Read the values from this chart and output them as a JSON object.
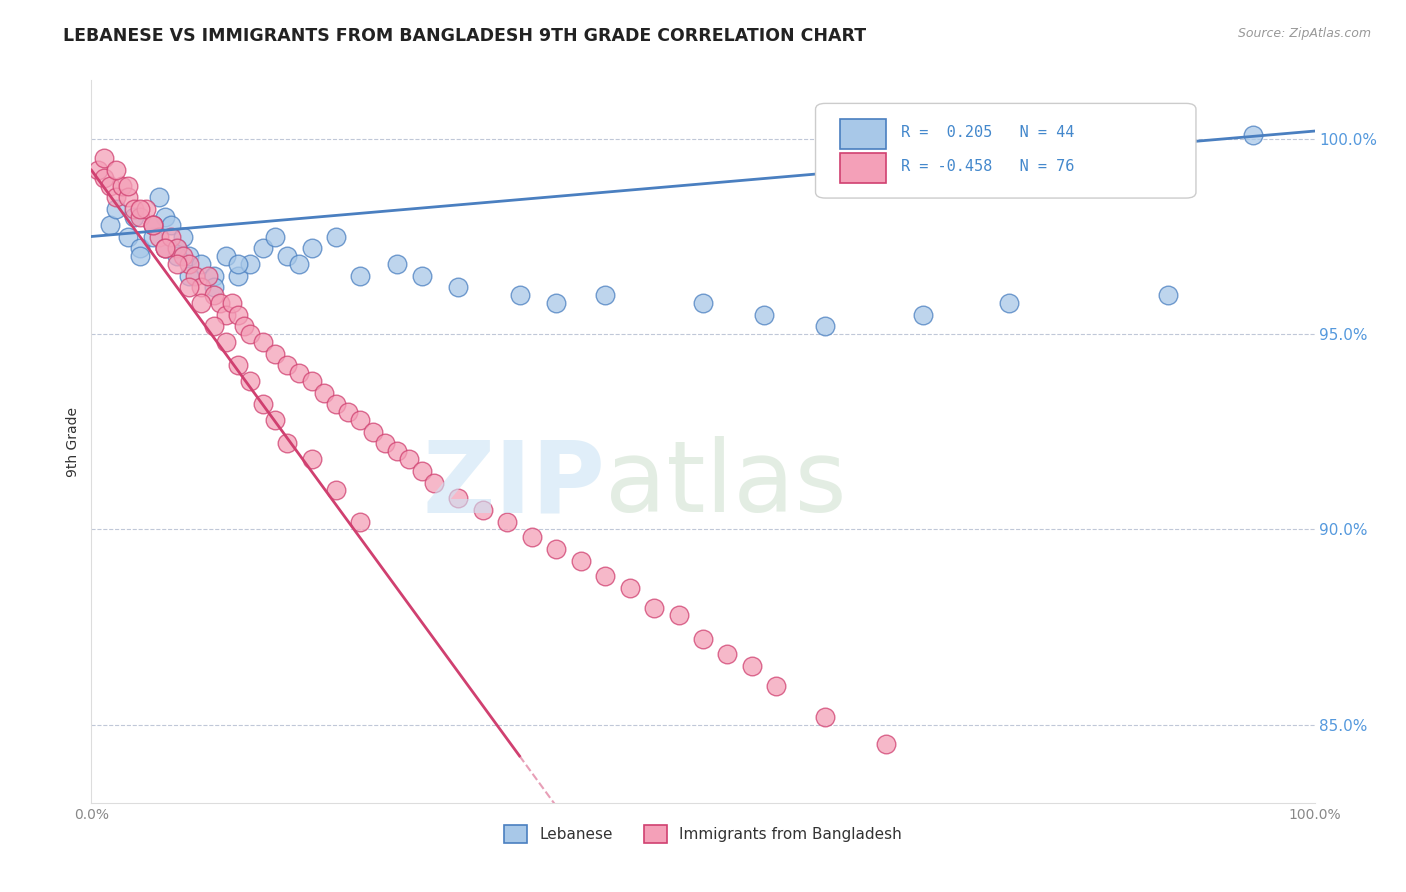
{
  "title": "LEBANESE VS IMMIGRANTS FROM BANGLADESH 9TH GRADE CORRELATION CHART",
  "source": "Source: ZipAtlas.com",
  "ylabel": "9th Grade",
  "legend_label_blue": "Lebanese",
  "legend_label_pink": "Immigrants from Bangladesh",
  "R_blue": 0.205,
  "N_blue": 44,
  "R_pink": -0.458,
  "N_pink": 76,
  "color_blue": "#A8C8E8",
  "color_pink": "#F4A0B8",
  "line_blue": "#4A7FC0",
  "line_pink": "#D04070",
  "xlim": [
    0,
    100
  ],
  "ylim": [
    83.0,
    101.5
  ],
  "yticks": [
    85.0,
    90.0,
    95.0,
    100.0
  ],
  "blue_trend_y0": 97.5,
  "blue_trend_y1": 100.2,
  "pink_trend_y0": 99.2,
  "pink_trend_x_end_solid": 35,
  "pink_trend_y_end_solid": 84.2,
  "pink_trend_x_end_dashed": 55,
  "pink_trend_y_end_dashed": 79.0,
  "blue_x": [
    1.5,
    2.0,
    3.0,
    3.5,
    4.0,
    5.0,
    5.5,
    6.0,
    6.5,
    7.0,
    7.5,
    8.0,
    9.0,
    10.0,
    11.0,
    12.0,
    13.0,
    14.0,
    15.0,
    16.0,
    17.0,
    18.0,
    20.0,
    22.0,
    25.0,
    27.0,
    30.0,
    35.0,
    38.0,
    42.0,
    50.0,
    55.0,
    60.0,
    68.0,
    75.0,
    88.0,
    4.0,
    5.0,
    6.0,
    7.0,
    8.0,
    10.0,
    12.0,
    95.0
  ],
  "blue_y": [
    97.8,
    98.2,
    97.5,
    98.0,
    97.2,
    97.5,
    98.5,
    98.0,
    97.8,
    97.2,
    97.5,
    97.0,
    96.8,
    96.5,
    97.0,
    96.5,
    96.8,
    97.2,
    97.5,
    97.0,
    96.8,
    97.2,
    97.5,
    96.5,
    96.8,
    96.5,
    96.2,
    96.0,
    95.8,
    96.0,
    95.8,
    95.5,
    95.2,
    95.5,
    95.8,
    96.0,
    97.0,
    97.8,
    97.2,
    97.0,
    96.5,
    96.2,
    96.8,
    100.1
  ],
  "pink_x": [
    0.5,
    1.0,
    1.5,
    2.0,
    2.5,
    3.0,
    3.5,
    4.0,
    4.5,
    5.0,
    5.5,
    6.0,
    6.5,
    7.0,
    7.5,
    8.0,
    8.5,
    9.0,
    9.5,
    10.0,
    10.5,
    11.0,
    11.5,
    12.0,
    12.5,
    13.0,
    14.0,
    15.0,
    16.0,
    17.0,
    18.0,
    19.0,
    20.0,
    21.0,
    22.0,
    23.0,
    24.0,
    25.0,
    26.0,
    27.0,
    28.0,
    30.0,
    32.0,
    34.0,
    36.0,
    38.0,
    40.0,
    42.0,
    44.0,
    46.0,
    48.0,
    50.0,
    52.0,
    54.0,
    56.0,
    60.0,
    65.0,
    1.0,
    2.0,
    3.0,
    4.0,
    5.0,
    6.0,
    7.0,
    8.0,
    9.0,
    10.0,
    11.0,
    12.0,
    13.0,
    14.0,
    15.0,
    16.0,
    18.0,
    20.0,
    22.0
  ],
  "pink_y": [
    99.2,
    99.0,
    98.8,
    98.5,
    98.8,
    98.5,
    98.2,
    98.0,
    98.2,
    97.8,
    97.5,
    97.2,
    97.5,
    97.2,
    97.0,
    96.8,
    96.5,
    96.2,
    96.5,
    96.0,
    95.8,
    95.5,
    95.8,
    95.5,
    95.2,
    95.0,
    94.8,
    94.5,
    94.2,
    94.0,
    93.8,
    93.5,
    93.2,
    93.0,
    92.8,
    92.5,
    92.2,
    92.0,
    91.8,
    91.5,
    91.2,
    90.8,
    90.5,
    90.2,
    89.8,
    89.5,
    89.2,
    88.8,
    88.5,
    88.0,
    87.8,
    87.2,
    86.8,
    86.5,
    86.0,
    85.2,
    84.5,
    99.5,
    99.2,
    98.8,
    98.2,
    97.8,
    97.2,
    96.8,
    96.2,
    95.8,
    95.2,
    94.8,
    94.2,
    93.8,
    93.2,
    92.8,
    92.2,
    91.8,
    91.0,
    90.2
  ]
}
